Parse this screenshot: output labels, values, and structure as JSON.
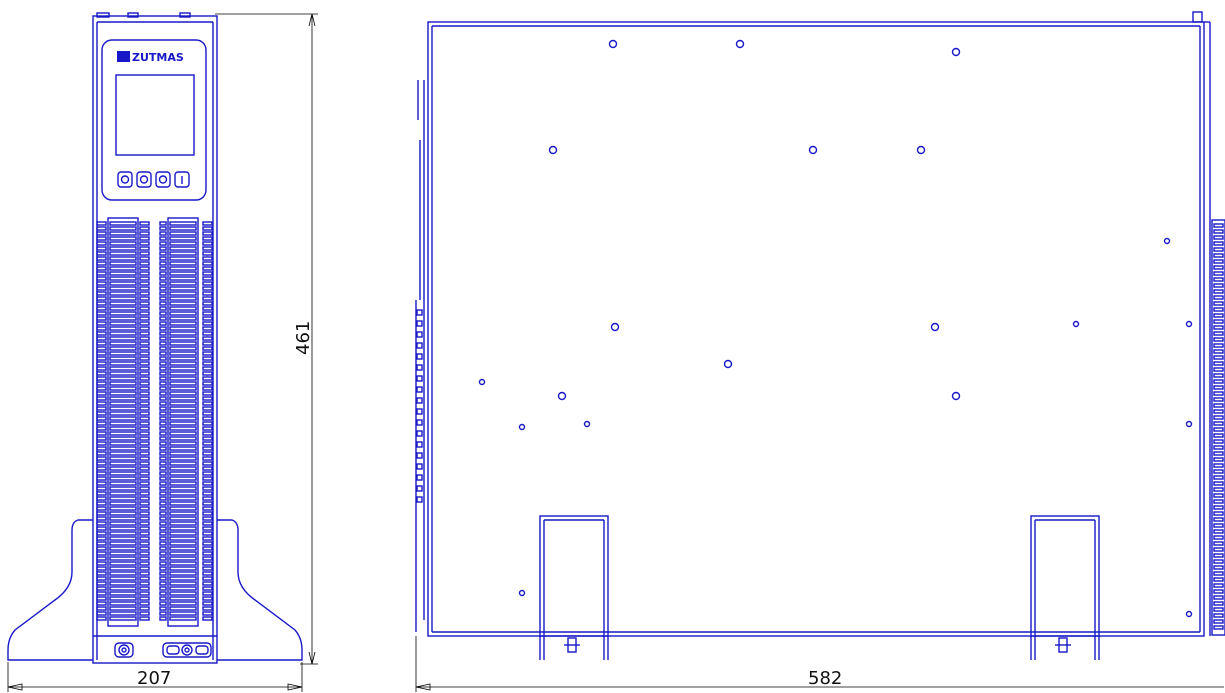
{
  "colors": {
    "outline": "#1818c8",
    "dimension": "#000000",
    "background": "#ffffff"
  },
  "front_view": {
    "brand_logo": "ZUTMAS",
    "height_dimension": "461",
    "width_dimension": "207",
    "control_buttons": [
      "power-icon",
      "enter-icon",
      "select-icon",
      "info-icon"
    ],
    "rear_connectors": [
      "connector-icon",
      "connector-icon"
    ]
  },
  "side_view": {
    "length_dimension": "582"
  }
}
